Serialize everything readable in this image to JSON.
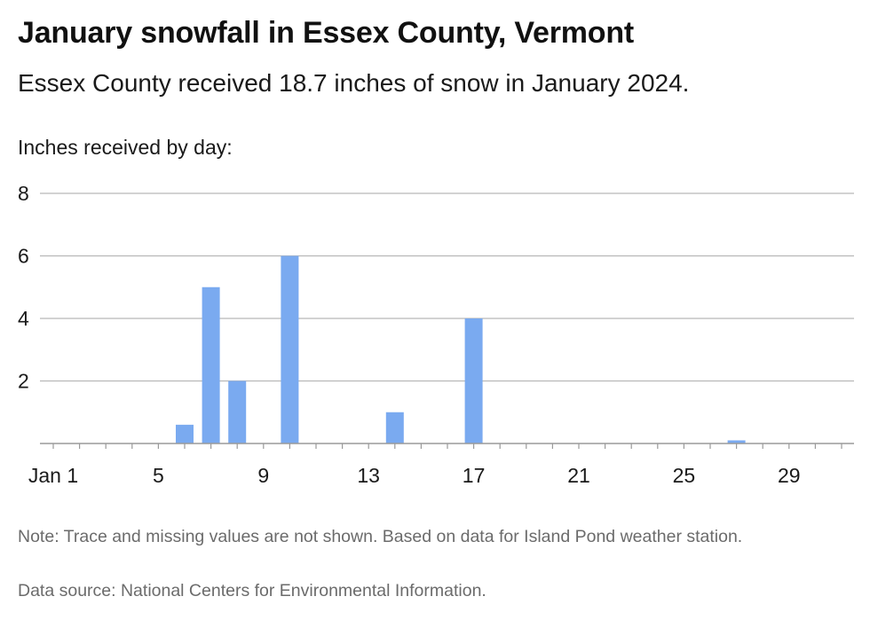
{
  "header": {
    "title": "January snowfall in Essex County, Vermont",
    "subtitle": "Essex County received 18.7 inches of snow in January 2024.",
    "ylabel": "Inches received by day:"
  },
  "footer": {
    "note": "Note: Trace and missing values are not shown. Based on data for Island Pond weather station.",
    "source": "Data source: National Centers for Environmental Information."
  },
  "chart_data": {
    "type": "bar",
    "title": "January snowfall in Essex County, Vermont",
    "subtitle": "Essex County received 18.7 inches of snow in January 2024.",
    "ylabel": "Inches received by day:",
    "xlabel": "",
    "ylim": [
      0,
      8
    ],
    "xlim": [
      1,
      31
    ],
    "y_ticks": [
      2,
      4,
      6,
      8
    ],
    "x_ticks": [
      1,
      5,
      9,
      13,
      17,
      21,
      25,
      29
    ],
    "x_tick_labels": [
      "Jan 1",
      "5",
      "9",
      "13",
      "17",
      "21",
      "25",
      "29"
    ],
    "grid": true,
    "bar_color": "#7aaaf0",
    "days": [
      6,
      7,
      8,
      10,
      14,
      17,
      27
    ],
    "values": [
      0.6,
      5,
      2,
      6,
      1,
      4,
      0.1
    ]
  }
}
